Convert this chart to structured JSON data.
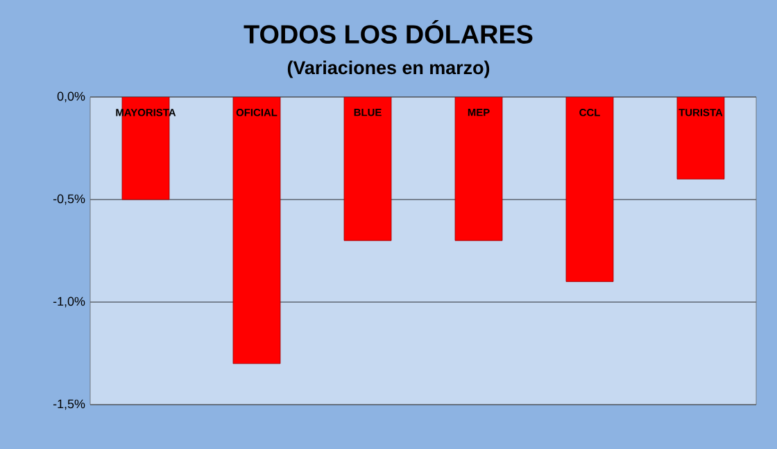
{
  "chart_data": {
    "type": "bar",
    "title": "TODOS LOS DÓLARES",
    "subtitle": "(Variaciones  en marzo)",
    "categories": [
      "MAYORISTA",
      "OFICIAL",
      "BLUE",
      "MEP",
      "CCL",
      "TURISTA"
    ],
    "values": [
      -0.5,
      -1.3,
      -0.7,
      -0.7,
      -0.9,
      -0.4
    ],
    "color": "#ff0000",
    "ylim": [
      -1.5,
      0
    ],
    "yticks": [
      {
        "value": -1.5,
        "label": "-1,5%"
      },
      {
        "value": -1.0,
        "label": "-1,0%"
      },
      {
        "value": -0.5,
        "label": "-0,5%"
      },
      {
        "value": 0,
        "label": "0,0%"
      }
    ],
    "grid": "y"
  }
}
